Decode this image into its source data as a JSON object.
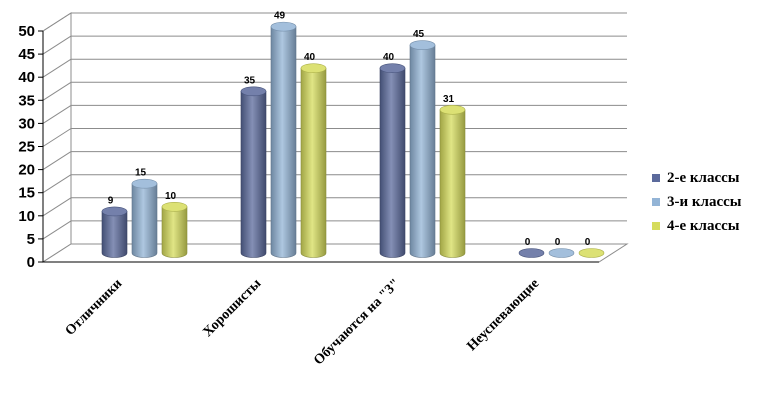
{
  "chart_data": {
    "type": "bar",
    "categories": [
      "Отличники",
      "Хорошисты",
      "Обучаются на \"3\"",
      "Неуспевающие"
    ],
    "series": [
      {
        "name": "2-е классы",
        "values": [
          9,
          35,
          40,
          0
        ],
        "color": "#5b6a9c"
      },
      {
        "name": "3-и классы",
        "values": [
          15,
          49,
          45,
          0
        ],
        "color": "#93b4d6"
      },
      {
        "name": "4-е классы",
        "values": [
          10,
          40,
          31,
          0
        ],
        "color": "#d6dc5c"
      }
    ],
    "yticks": [
      "0",
      "5",
      "10",
      "15",
      "20",
      "25",
      "30",
      "35",
      "40",
      "45",
      "50"
    ],
    "ylim": [
      0,
      50
    ],
    "grid": true,
    "legend_position": "right"
  }
}
